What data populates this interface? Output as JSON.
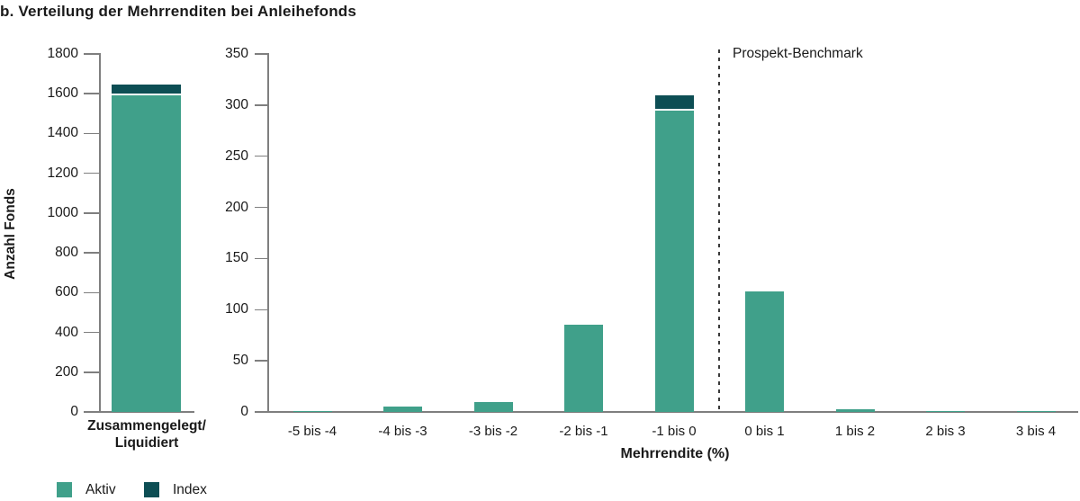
{
  "title": "b. Verteilung der Mehrrenditen bei Anleihefonds",
  "colors": {
    "aktiv": "#40A08A",
    "index": "#0D4E54",
    "axis": "#7F7F7F",
    "benchmark_line": "#3A3A3A",
    "text": "#1A1A1A"
  },
  "legend": {
    "items": [
      {
        "label": "Aktiv",
        "color": "#40A08A"
      },
      {
        "label": "Index",
        "color": "#0D4E54"
      }
    ]
  },
  "chart_data": [
    {
      "type": "bar",
      "stacked": true,
      "panel": "left",
      "ylabel": "Anzahl Fonds",
      "xlabel": "",
      "ylim": [
        0,
        1800
      ],
      "yticks": [
        0,
        200,
        400,
        600,
        800,
        1000,
        1200,
        1400,
        1600,
        1800
      ],
      "categories": [
        "Zusammengelegt/\nLiquidiert"
      ],
      "series": [
        {
          "name": "Aktiv",
          "values": [
            1590
          ]
        },
        {
          "name": "Index",
          "values": [
            45
          ]
        }
      ],
      "grid": false
    },
    {
      "type": "bar",
      "stacked": true,
      "panel": "right",
      "ylabel": "",
      "xlabel": "Mehrrendite (%)",
      "ylim": [
        0,
        350
      ],
      "yticks": [
        0,
        50,
        100,
        150,
        200,
        250,
        300,
        350
      ],
      "categories": [
        "-5 bis -4",
        "-4 bis -3",
        "-3 bis -2",
        "-2 bis -1",
        "-1 bis 0",
        "0 bis 1",
        "1 bis 2",
        "2 bis 3",
        "3 bis 4"
      ],
      "series": [
        {
          "name": "Aktiv",
          "values": [
            1,
            5,
            10,
            85,
            295,
            118,
            3,
            1,
            1
          ]
        },
        {
          "name": "Index",
          "values": [
            0,
            0,
            0,
            0,
            13,
            0,
            0,
            0,
            0
          ]
        }
      ],
      "annotation": {
        "label": "Prospekt-Benchmark",
        "line_between": [
          "-1 bis 0",
          "0 bis 1"
        ]
      },
      "grid": false
    }
  ]
}
